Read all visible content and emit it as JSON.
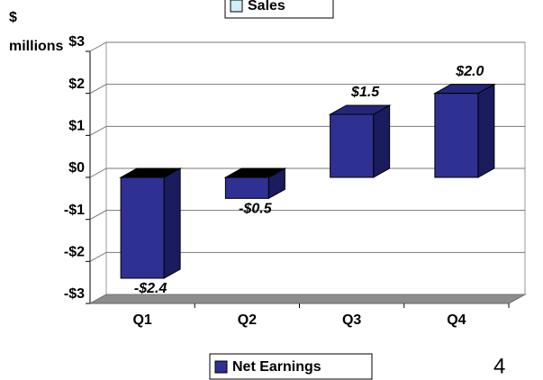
{
  "chart_data": {
    "type": "bar3d",
    "ylabel": [
      "$",
      "millions"
    ],
    "categories": [
      "Q1",
      "Q2",
      "Q3",
      "Q4"
    ],
    "series": [
      {
        "name": "Net Earnings",
        "color": "#2e3192",
        "values": [
          -2.4,
          -0.5,
          1.5,
          2.0
        ],
        "value_labels": [
          "-$2.4",
          "-$0.5",
          "$1.5",
          "$2.0"
        ]
      },
      {
        "name": "Sales",
        "color": "#cfeef6",
        "values": [
          null,
          null,
          null,
          null
        ]
      }
    ],
    "ylim": [
      -3,
      3
    ],
    "yticks": [
      {
        "value": -3,
        "label": "-$3"
      },
      {
        "value": -2,
        "label": "-$2"
      },
      {
        "value": -1,
        "label": "-$1"
      },
      {
        "value": 0,
        "label": "$0"
      },
      {
        "value": 1,
        "label": "$1"
      },
      {
        "value": 2,
        "label": "$2"
      },
      {
        "value": 3,
        "label": "$3"
      }
    ],
    "grid": true
  },
  "page_number": "4"
}
